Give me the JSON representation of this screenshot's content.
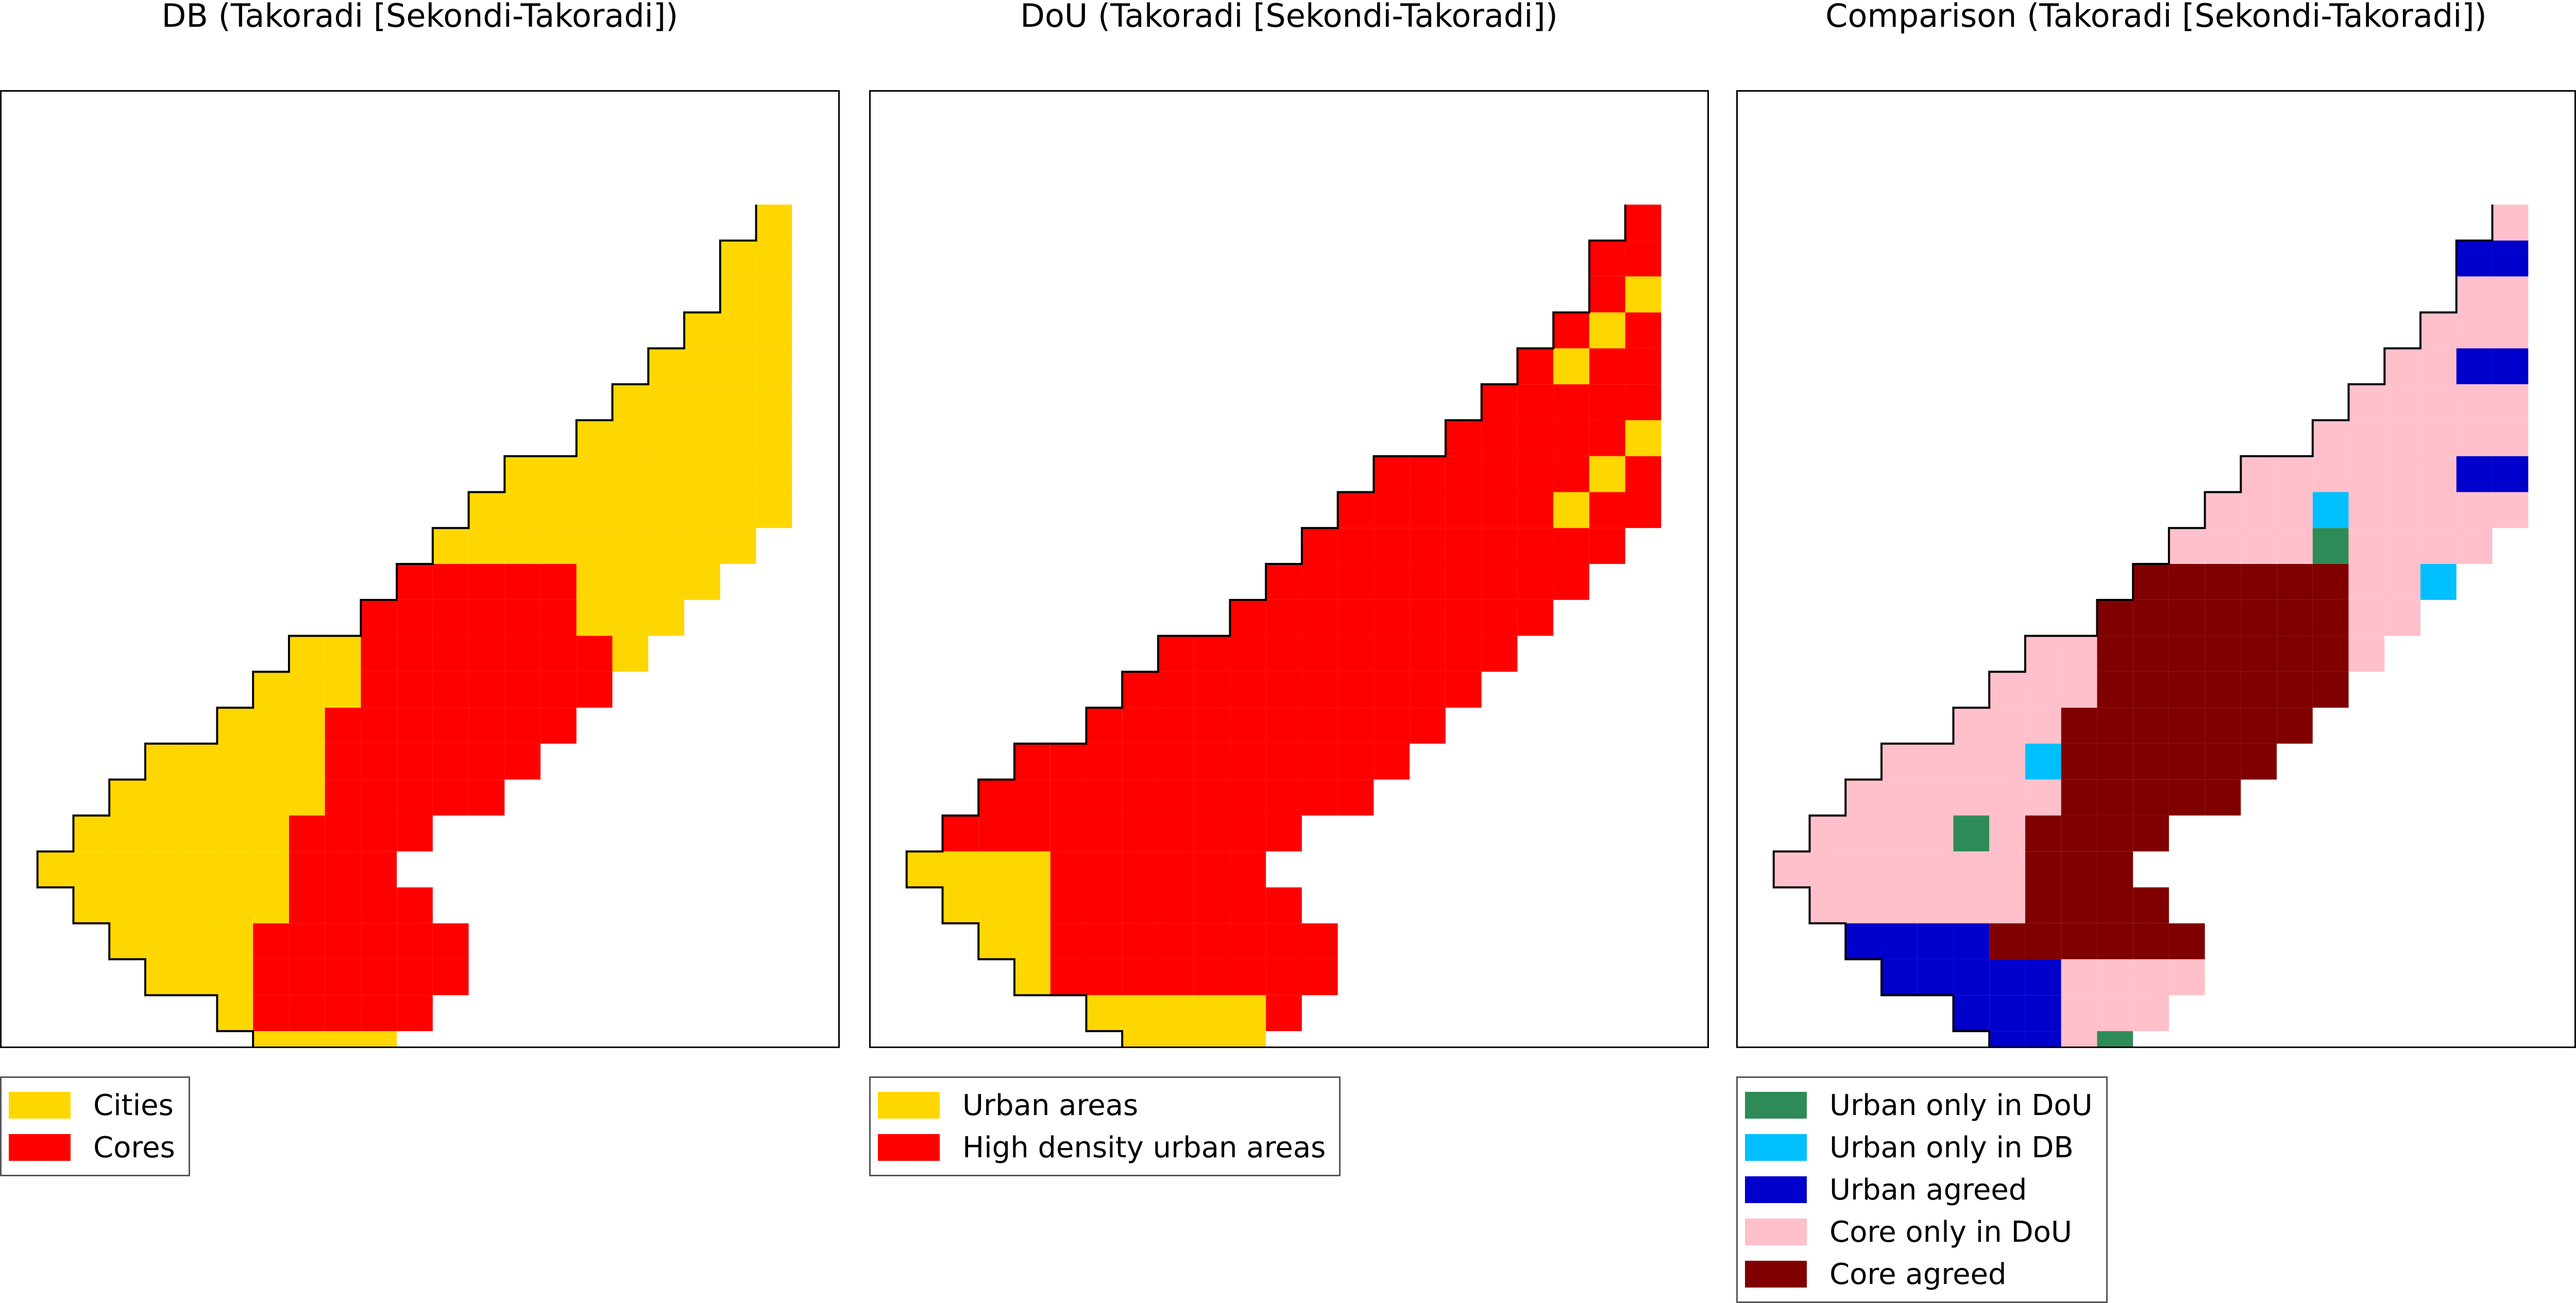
{
  "figure": {
    "panels": [
      {
        "title": "DB (Takoradi [Sekondi-Takoradi])",
        "legend": [
          {
            "label": "Cities",
            "color": "#ffd700"
          },
          {
            "label": "Cores",
            "color": "#ff0000"
          }
        ]
      },
      {
        "title": "DoU (Takoradi [Sekondi-Takoradi])",
        "legend": [
          {
            "label": "Urban areas",
            "color": "#ffd700"
          },
          {
            "label": "High density urban areas",
            "color": "#ff0000"
          }
        ]
      },
      {
        "title": "Comparison (Takoradi [Sekondi-Takoradi])",
        "legend": [
          {
            "label": "Urban only in DoU",
            "color": "#2e8b57"
          },
          {
            "label": "Urban only in DB",
            "color": "#00bfff"
          },
          {
            "label": "Urban agreed",
            "color": "#0000cd"
          },
          {
            "label": "Core only in DoU",
            "color": "#ffc0cb"
          },
          {
            "label": "Core agreed",
            "color": "#800000"
          }
        ]
      }
    ]
  }
}
